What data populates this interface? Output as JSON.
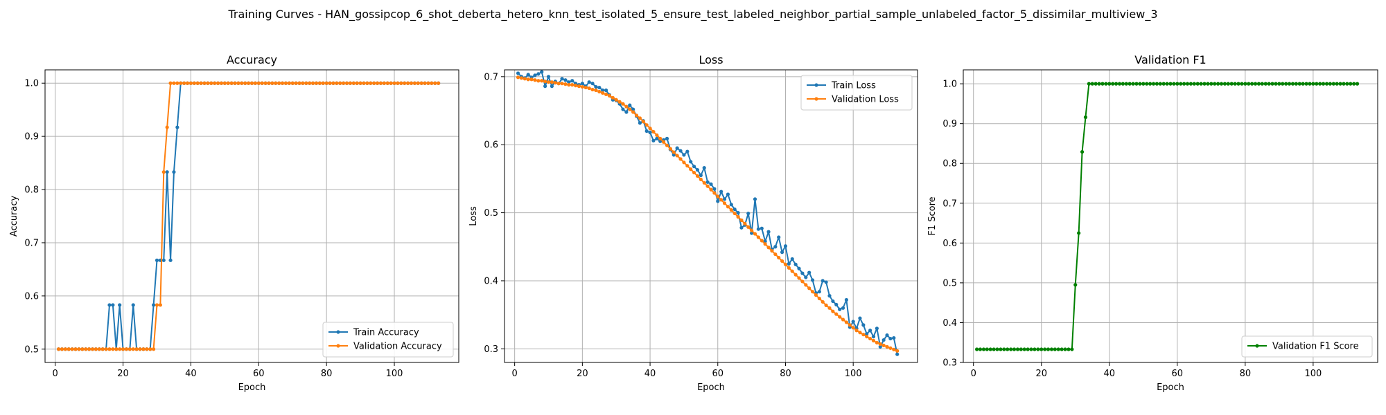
{
  "title": "Training Curves - HAN_gossipcop_6_shot_deberta_hetero_knn_test_isolated_5_ensure_test_labeled_neighbor_partial_sample_unlabeled_factor_5_dissimilar_multiview_3",
  "colors": {
    "train": "#1f77b4",
    "validation": "#ff7f0e",
    "f1": "#008000"
  },
  "chart_data": [
    {
      "type": "line",
      "title": "Accuracy",
      "xlabel": "Epoch",
      "ylabel": "Accuracy",
      "xlim": [
        -3,
        119
      ],
      "ylim": [
        0.475,
        1.025
      ],
      "xticks": [
        0,
        20,
        40,
        60,
        80,
        100
      ],
      "yticks": [
        0.5,
        0.6,
        0.7,
        0.8,
        0.9,
        1.0
      ],
      "ytick_labels": [
        "0.5",
        "0.6",
        "0.7",
        "0.8",
        "0.9",
        "1.0"
      ],
      "grid": true,
      "legend": "lower right",
      "x_start": 1,
      "series": [
        {
          "name": "Train Accuracy",
          "color": "#1f77b4",
          "values": [
            0.5,
            0.5,
            0.5,
            0.5,
            0.5,
            0.5,
            0.5,
            0.5,
            0.5,
            0.5,
            0.5,
            0.5,
            0.5,
            0.5,
            0.5,
            0.583,
            0.583,
            0.5,
            0.583,
            0.5,
            0.5,
            0.5,
            0.583,
            0.5,
            0.5,
            0.5,
            0.5,
            0.5,
            0.583,
            0.667,
            0.667,
            0.667,
            0.833,
            0.667,
            0.833,
            0.917,
            1.0,
            1.0,
            1.0,
            1.0,
            1.0,
            1.0,
            1.0,
            1.0,
            1.0,
            1.0,
            1.0,
            1.0,
            1.0,
            1.0,
            1.0,
            1.0,
            1.0,
            1.0,
            1.0,
            1.0,
            1.0,
            1.0,
            1.0,
            1.0,
            1.0,
            1.0,
            1.0,
            1.0,
            1.0,
            1.0,
            1.0,
            1.0,
            1.0,
            1.0,
            1.0,
            1.0,
            1.0,
            1.0,
            1.0,
            1.0,
            1.0,
            1.0,
            1.0,
            1.0,
            1.0,
            1.0,
            1.0,
            1.0,
            1.0,
            1.0,
            1.0,
            1.0,
            1.0,
            1.0,
            1.0,
            1.0,
            1.0,
            1.0,
            1.0,
            1.0,
            1.0,
            1.0,
            1.0,
            1.0,
            1.0,
            1.0,
            1.0,
            1.0,
            1.0,
            1.0,
            1.0,
            1.0,
            1.0,
            1.0,
            1.0,
            1.0,
            1.0
          ]
        },
        {
          "name": "Validation Accuracy",
          "color": "#ff7f0e",
          "values": [
            0.5,
            0.5,
            0.5,
            0.5,
            0.5,
            0.5,
            0.5,
            0.5,
            0.5,
            0.5,
            0.5,
            0.5,
            0.5,
            0.5,
            0.5,
            0.5,
            0.5,
            0.5,
            0.5,
            0.5,
            0.5,
            0.5,
            0.5,
            0.5,
            0.5,
            0.5,
            0.5,
            0.5,
            0.5,
            0.583,
            0.583,
            0.833,
            0.917,
            1.0,
            1.0,
            1.0,
            1.0,
            1.0,
            1.0,
            1.0,
            1.0,
            1.0,
            1.0,
            1.0,
            1.0,
            1.0,
            1.0,
            1.0,
            1.0,
            1.0,
            1.0,
            1.0,
            1.0,
            1.0,
            1.0,
            1.0,
            1.0,
            1.0,
            1.0,
            1.0,
            1.0,
            1.0,
            1.0,
            1.0,
            1.0,
            1.0,
            1.0,
            1.0,
            1.0,
            1.0,
            1.0,
            1.0,
            1.0,
            1.0,
            1.0,
            1.0,
            1.0,
            1.0,
            1.0,
            1.0,
            1.0,
            1.0,
            1.0,
            1.0,
            1.0,
            1.0,
            1.0,
            1.0,
            1.0,
            1.0,
            1.0,
            1.0,
            1.0,
            1.0,
            1.0,
            1.0,
            1.0,
            1.0,
            1.0,
            1.0,
            1.0,
            1.0,
            1.0,
            1.0,
            1.0,
            1.0,
            1.0,
            1.0,
            1.0,
            1.0,
            1.0,
            1.0,
            1.0
          ]
        }
      ]
    },
    {
      "type": "line",
      "title": "Loss",
      "xlabel": "Epoch",
      "ylabel": "Loss",
      "xlim": [
        -3,
        119
      ],
      "ylim": [
        0.28,
        0.71
      ],
      "xticks": [
        0,
        20,
        40,
        60,
        80,
        100
      ],
      "yticks": [
        0.3,
        0.4,
        0.5,
        0.6,
        0.7
      ],
      "ytick_labels": [
        "0.3",
        "0.4",
        "0.5",
        "0.6",
        "0.7"
      ],
      "grid": true,
      "legend": "upper right",
      "x_start": 1,
      "series": [
        {
          "name": "Train Loss",
          "color": "#1f77b4",
          "values": [
            0.705,
            0.7,
            0.698,
            0.703,
            0.699,
            0.702,
            0.704,
            0.707,
            0.686,
            0.7,
            0.686,
            0.693,
            0.69,
            0.697,
            0.695,
            0.692,
            0.694,
            0.69,
            0.688,
            0.69,
            0.686,
            0.692,
            0.69,
            0.685,
            0.684,
            0.68,
            0.68,
            0.673,
            0.666,
            0.665,
            0.66,
            0.652,
            0.648,
            0.658,
            0.652,
            0.642,
            0.632,
            0.635,
            0.62,
            0.618,
            0.606,
            0.609,
            0.605,
            0.607,
            0.609,
            0.593,
            0.585,
            0.595,
            0.591,
            0.585,
            0.59,
            0.575,
            0.568,
            0.563,
            0.555,
            0.566,
            0.545,
            0.542,
            0.535,
            0.517,
            0.531,
            0.52,
            0.527,
            0.512,
            0.505,
            0.5,
            0.478,
            0.482,
            0.499,
            0.47,
            0.52,
            0.476,
            0.477,
            0.458,
            0.472,
            0.446,
            0.45,
            0.464,
            0.442,
            0.451,
            0.425,
            0.432,
            0.424,
            0.418,
            0.411,
            0.405,
            0.412,
            0.401,
            0.382,
            0.384,
            0.4,
            0.398,
            0.378,
            0.37,
            0.365,
            0.358,
            0.36,
            0.372,
            0.332,
            0.34,
            0.33,
            0.345,
            0.335,
            0.322,
            0.327,
            0.318,
            0.33,
            0.303,
            0.313,
            0.32,
            0.315,
            0.316,
            0.292
          ]
        },
        {
          "name": "Validation Loss",
          "color": "#ff7f0e",
          "values": [
            0.699,
            0.698,
            0.697,
            0.696,
            0.696,
            0.695,
            0.694,
            0.694,
            0.693,
            0.692,
            0.692,
            0.691,
            0.69,
            0.69,
            0.689,
            0.688,
            0.688,
            0.687,
            0.686,
            0.685,
            0.684,
            0.683,
            0.681,
            0.68,
            0.678,
            0.676,
            0.674,
            0.672,
            0.669,
            0.666,
            0.663,
            0.66,
            0.656,
            0.652,
            0.648,
            0.643,
            0.639,
            0.634,
            0.629,
            0.624,
            0.619,
            0.614,
            0.609,
            0.604,
            0.599,
            0.594,
            0.589,
            0.584,
            0.579,
            0.574,
            0.569,
            0.564,
            0.559,
            0.554,
            0.549,
            0.544,
            0.539,
            0.534,
            0.529,
            0.524,
            0.519,
            0.514,
            0.509,
            0.504,
            0.499,
            0.494,
            0.489,
            0.484,
            0.479,
            0.474,
            0.469,
            0.464,
            0.459,
            0.454,
            0.449,
            0.444,
            0.439,
            0.434,
            0.429,
            0.424,
            0.419,
            0.414,
            0.409,
            0.404,
            0.399,
            0.394,
            0.389,
            0.384,
            0.379,
            0.374,
            0.369,
            0.364,
            0.36,
            0.355,
            0.351,
            0.347,
            0.343,
            0.339,
            0.335,
            0.331,
            0.327,
            0.324,
            0.321,
            0.318,
            0.315,
            0.312,
            0.309,
            0.307,
            0.305,
            0.303,
            0.301,
            0.299,
            0.297
          ]
        }
      ]
    },
    {
      "type": "line",
      "title": "Validation F1",
      "xlabel": "Epoch",
      "ylabel": "F1 Score",
      "xlim": [
        -3,
        119
      ],
      "ylim": [
        0.3,
        1.035
      ],
      "xticks": [
        0,
        20,
        40,
        60,
        80,
        100
      ],
      "yticks": [
        0.3,
        0.4,
        0.5,
        0.6,
        0.7,
        0.8,
        0.9,
        1.0
      ],
      "ytick_labels": [
        "0.3",
        "0.4",
        "0.5",
        "0.6",
        "0.7",
        "0.8",
        "0.9",
        "1.0"
      ],
      "grid": true,
      "legend": "lower right",
      "x_start": 1,
      "series": [
        {
          "name": "Validation F1 Score",
          "color": "#008000",
          "values": [
            0.333,
            0.333,
            0.333,
            0.333,
            0.333,
            0.333,
            0.333,
            0.333,
            0.333,
            0.333,
            0.333,
            0.333,
            0.333,
            0.333,
            0.333,
            0.333,
            0.333,
            0.333,
            0.333,
            0.333,
            0.333,
            0.333,
            0.333,
            0.333,
            0.333,
            0.333,
            0.333,
            0.333,
            0.333,
            0.495,
            0.625,
            0.829,
            0.916,
            1.0,
            1.0,
            1.0,
            1.0,
            1.0,
            1.0,
            1.0,
            1.0,
            1.0,
            1.0,
            1.0,
            1.0,
            1.0,
            1.0,
            1.0,
            1.0,
            1.0,
            1.0,
            1.0,
            1.0,
            1.0,
            1.0,
            1.0,
            1.0,
            1.0,
            1.0,
            1.0,
            1.0,
            1.0,
            1.0,
            1.0,
            1.0,
            1.0,
            1.0,
            1.0,
            1.0,
            1.0,
            1.0,
            1.0,
            1.0,
            1.0,
            1.0,
            1.0,
            1.0,
            1.0,
            1.0,
            1.0,
            1.0,
            1.0,
            1.0,
            1.0,
            1.0,
            1.0,
            1.0,
            1.0,
            1.0,
            1.0,
            1.0,
            1.0,
            1.0,
            1.0,
            1.0,
            1.0,
            1.0,
            1.0,
            1.0,
            1.0,
            1.0,
            1.0,
            1.0,
            1.0,
            1.0,
            1.0,
            1.0,
            1.0,
            1.0,
            1.0,
            1.0,
            1.0,
            1.0
          ]
        }
      ]
    }
  ]
}
